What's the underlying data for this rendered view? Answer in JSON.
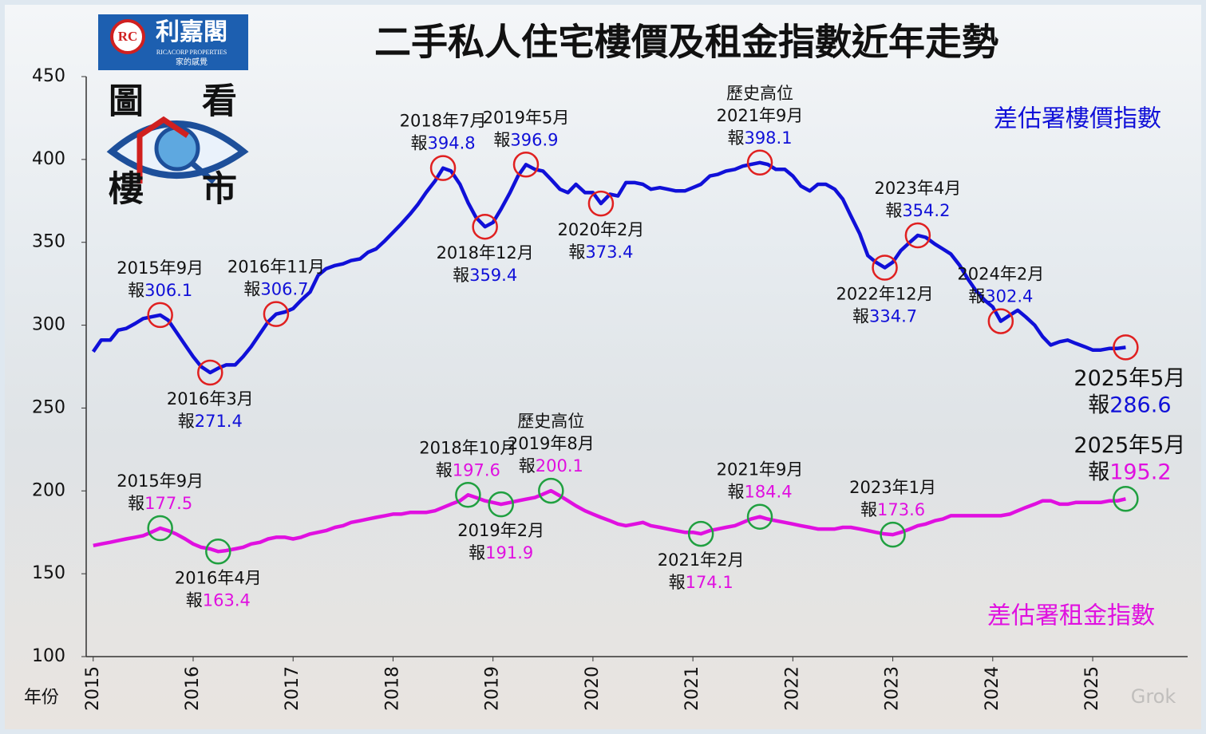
{
  "logo": {
    "monogram": "RC",
    "brand": "利嘉閣",
    "english": "RICACORP PROPERTIES",
    "slogan": "家的感覺",
    "characters": [
      "圖",
      "看",
      "樓",
      "市"
    ]
  },
  "watermark": "Grok",
  "chart_data": {
    "type": "line",
    "title": "二手私人住宅樓價及租金指數近年走勢",
    "x_label": "年份",
    "xlim": [
      2014.93,
      2025.95
    ],
    "xticks": [
      2015,
      2016,
      2017,
      2018,
      2019,
      2020,
      2021,
      2022,
      2023,
      2024,
      2025
    ],
    "ylim": [
      100,
      450
    ],
    "yticks": [
      100,
      150,
      200,
      250,
      300,
      350,
      400,
      450
    ],
    "grid": false,
    "series": [
      {
        "name": "差估署樓價指數",
        "color": "#1010d8",
        "marker_color": "#e02020",
        "x": [
          2015.0,
          2015.08,
          2015.17,
          2015.25,
          2015.33,
          2015.42,
          2015.5,
          2015.58,
          2015.67,
          2015.75,
          2015.83,
          2015.92,
          2016.0,
          2016.08,
          2016.17,
          2016.25,
          2016.33,
          2016.42,
          2016.5,
          2016.58,
          2016.67,
          2016.75,
          2016.83,
          2016.92,
          2017.0,
          2017.08,
          2017.17,
          2017.25,
          2017.33,
          2017.42,
          2017.5,
          2017.58,
          2017.67,
          2017.75,
          2017.83,
          2017.92,
          2018.0,
          2018.08,
          2018.17,
          2018.25,
          2018.33,
          2018.42,
          2018.5,
          2018.58,
          2018.67,
          2018.75,
          2018.83,
          2018.92,
          2019.0,
          2019.08,
          2019.17,
          2019.25,
          2019.33,
          2019.42,
          2019.5,
          2019.58,
          2019.67,
          2019.75,
          2019.83,
          2019.92,
          2020.0,
          2020.08,
          2020.17,
          2020.25,
          2020.33,
          2020.42,
          2020.5,
          2020.58,
          2020.67,
          2020.75,
          2020.83,
          2020.92,
          2021.0,
          2021.08,
          2021.17,
          2021.25,
          2021.33,
          2021.42,
          2021.5,
          2021.58,
          2021.67,
          2021.75,
          2021.83,
          2021.92,
          2022.0,
          2022.08,
          2022.17,
          2022.25,
          2022.33,
          2022.42,
          2022.5,
          2022.58,
          2022.67,
          2022.75,
          2022.83,
          2022.92,
          2023.0,
          2023.08,
          2023.17,
          2023.25,
          2023.33,
          2023.42,
          2023.5,
          2023.58,
          2023.67,
          2023.75,
          2023.83,
          2023.92,
          2024.0,
          2024.08,
          2024.17,
          2024.25,
          2024.33,
          2024.42,
          2024.5,
          2024.58,
          2024.67,
          2024.75,
          2024.83,
          2024.92,
          2025.0,
          2025.08,
          2025.17,
          2025.25,
          2025.33
        ],
        "values": [
          284,
          291,
          291,
          297,
          298,
          301,
          304,
          305,
          306.1,
          303,
          296,
          288,
          281,
          275,
          271.4,
          274,
          276,
          276,
          281,
          287,
          295,
          302,
          306.7,
          308,
          310,
          315,
          320,
          330,
          334,
          336,
          337,
          339,
          340,
          344,
          346,
          351,
          356,
          361,
          367,
          373,
          380,
          387,
          394.8,
          393,
          385,
          374,
          365,
          359.4,
          362,
          370,
          380,
          390,
          396.9,
          394,
          393,
          388,
          382,
          380,
          385,
          380,
          380,
          373.4,
          379,
          378,
          386,
          386,
          385,
          382,
          383,
          382,
          381,
          381,
          383,
          385,
          390,
          391,
          393,
          394,
          396,
          397,
          398.1,
          397,
          394,
          394,
          390,
          384,
          381,
          385,
          385,
          382,
          376,
          366,
          355,
          342,
          338,
          334.7,
          338,
          345,
          350,
          354.2,
          353,
          349,
          346,
          343,
          336,
          328,
          321,
          315,
          311,
          302.4,
          306,
          309,
          305,
          300,
          293,
          288,
          290,
          291,
          289,
          287,
          285,
          285,
          286,
          286,
          286.6
        ],
        "annotations": [
          {
            "x": 2015.67,
            "date": "2015年9月",
            "prefix": "報",
            "value": 306.1,
            "position": "above"
          },
          {
            "x": 2016.17,
            "date": "2016年3月",
            "prefix": "報",
            "value": 271.4,
            "position": "below"
          },
          {
            "x": 2016.83,
            "date": "2016年11月",
            "prefix": "報",
            "value": 306.7,
            "position": "above"
          },
          {
            "x": 2018.5,
            "date": "2018年7月",
            "prefix": "報",
            "value": 394.8,
            "position": "above"
          },
          {
            "x": 2018.92,
            "date": "2018年12月",
            "prefix": "報",
            "value": 359.4,
            "position": "below"
          },
          {
            "x": 2019.33,
            "date": "2019年5月",
            "prefix": "報",
            "value": 396.9,
            "position": "above"
          },
          {
            "x": 2020.08,
            "date": "2020年2月",
            "prefix": "報",
            "value": 373.4,
            "position": "below"
          },
          {
            "x": 2021.67,
            "note": "歷史高位",
            "date": "2021年9月",
            "prefix": "報",
            "value": 398.1,
            "position": "above"
          },
          {
            "x": 2022.92,
            "date": "2022年12月",
            "prefix": "報",
            "value": 334.7,
            "position": "below"
          },
          {
            "x": 2023.25,
            "date": "2023年4月",
            "prefix": "報",
            "value": 354.2,
            "position": "above"
          },
          {
            "x": 2024.08,
            "date": "2024年2月",
            "prefix": "報",
            "value": 302.4,
            "position": "above"
          },
          {
            "x": 2025.33,
            "date": "2025年5月",
            "prefix": "報",
            "value": 286.6,
            "position": "below"
          }
        ]
      },
      {
        "name": "差估署租金指數",
        "color": "#e010e0",
        "marker_color": "#20a040",
        "x": [
          2015.0,
          2015.08,
          2015.17,
          2015.25,
          2015.33,
          2015.42,
          2015.5,
          2015.58,
          2015.67,
          2015.75,
          2015.83,
          2015.92,
          2016.0,
          2016.08,
          2016.17,
          2016.25,
          2016.33,
          2016.42,
          2016.5,
          2016.58,
          2016.67,
          2016.75,
          2016.83,
          2016.92,
          2017.0,
          2017.08,
          2017.17,
          2017.25,
          2017.33,
          2017.42,
          2017.5,
          2017.58,
          2017.67,
          2017.75,
          2017.83,
          2017.92,
          2018.0,
          2018.08,
          2018.17,
          2018.25,
          2018.33,
          2018.42,
          2018.5,
          2018.58,
          2018.67,
          2018.75,
          2018.83,
          2018.92,
          2019.0,
          2019.08,
          2019.17,
          2019.25,
          2019.33,
          2019.42,
          2019.5,
          2019.58,
          2019.67,
          2019.75,
          2019.83,
          2019.92,
          2020.0,
          2020.08,
          2020.17,
          2020.25,
          2020.33,
          2020.42,
          2020.5,
          2020.58,
          2020.67,
          2020.75,
          2020.83,
          2020.92,
          2021.0,
          2021.08,
          2021.17,
          2021.25,
          2021.33,
          2021.42,
          2021.5,
          2021.58,
          2021.67,
          2021.75,
          2021.83,
          2021.92,
          2022.0,
          2022.08,
          2022.17,
          2022.25,
          2022.33,
          2022.42,
          2022.5,
          2022.58,
          2022.67,
          2022.75,
          2022.83,
          2022.92,
          2023.0,
          2023.08,
          2023.17,
          2023.25,
          2023.33,
          2023.42,
          2023.5,
          2023.58,
          2023.67,
          2023.75,
          2023.83,
          2023.92,
          2024.0,
          2024.08,
          2024.17,
          2024.25,
          2024.33,
          2024.42,
          2024.5,
          2024.58,
          2024.67,
          2024.75,
          2024.83,
          2024.92,
          2025.0,
          2025.08,
          2025.17,
          2025.25,
          2025.33
        ],
        "values": [
          167,
          168,
          169,
          170,
          171,
          172,
          173,
          175,
          177.5,
          176,
          174,
          171,
          168,
          166,
          165,
          163.4,
          164,
          165,
          166,
          168,
          169,
          171,
          172,
          172,
          171,
          172,
          174,
          175,
          176,
          178,
          179,
          181,
          182,
          183,
          184,
          185,
          186,
          186,
          187,
          187,
          187,
          188,
          190,
          192,
          194,
          197.6,
          196,
          194,
          193,
          191.9,
          193,
          194,
          195,
          196,
          198,
          200.1,
          197,
          194,
          191,
          188,
          186,
          184,
          182,
          180,
          179,
          180,
          181,
          179,
          178,
          177,
          176,
          175,
          175,
          174.1,
          176,
          177,
          178,
          179,
          181,
          183,
          184.4,
          183,
          182,
          181,
          180,
          179,
          178,
          177,
          177,
          177,
          178,
          178,
          177,
          176,
          175,
          174,
          173.6,
          175,
          177,
          179,
          180,
          182,
          183,
          185,
          185,
          185,
          185,
          185,
          185,
          185,
          186,
          188,
          190,
          192,
          194,
          194,
          192,
          192,
          193,
          193,
          193,
          193,
          194,
          194,
          195.2
        ],
        "annotations": [
          {
            "x": 2015.67,
            "date": "2015年9月",
            "prefix": "報",
            "value": 177.5,
            "position": "above"
          },
          {
            "x": 2016.25,
            "date": "2016年4月",
            "prefix": "報",
            "value": 163.4,
            "position": "below"
          },
          {
            "x": 2018.75,
            "date": "2018年10月",
            "prefix": "報",
            "value": 197.6,
            "position": "above"
          },
          {
            "x": 2019.08,
            "date": "2019年2月",
            "prefix": "報",
            "value": 191.9,
            "position": "below"
          },
          {
            "x": 2019.58,
            "note": "歷史高位",
            "date": "2019年8月",
            "prefix": "報",
            "value": 200.1,
            "position": "above"
          },
          {
            "x": 2021.08,
            "date": "2021年2月",
            "prefix": "報",
            "value": 174.1,
            "position": "below"
          },
          {
            "x": 2021.67,
            "date": "2021年9月",
            "prefix": "報",
            "value": 184.4,
            "position": "above"
          },
          {
            "x": 2023.0,
            "date": "2023年1月",
            "prefix": "報",
            "value": 173.6,
            "position": "above"
          },
          {
            "x": 2025.33,
            "date": "2025年5月",
            "prefix": "報",
            "value": 195.2,
            "position": "above"
          }
        ]
      }
    ]
  }
}
